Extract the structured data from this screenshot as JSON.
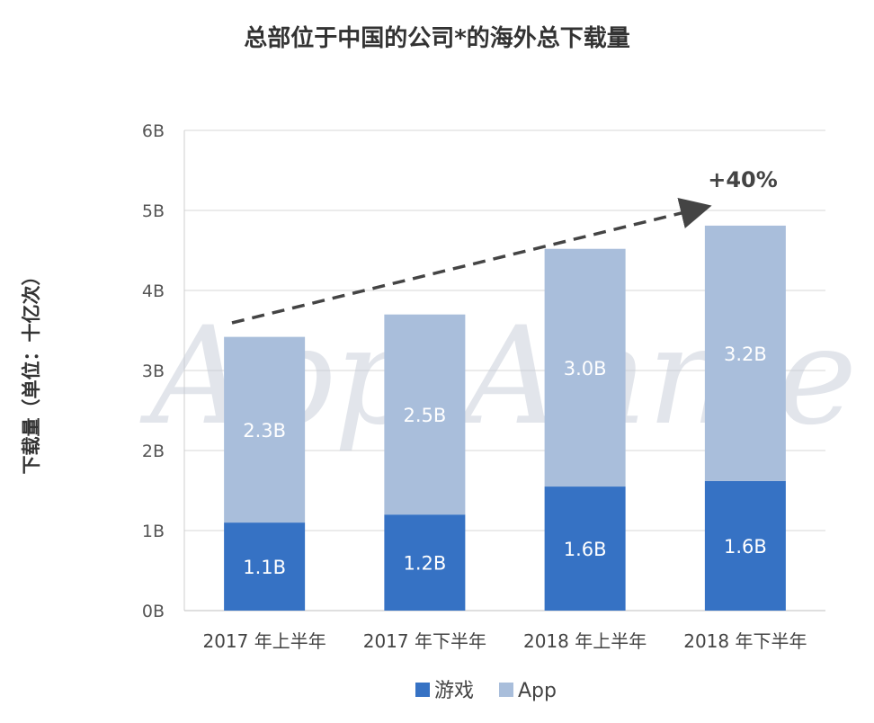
{
  "chart_data": {
    "type": "bar",
    "stacked": true,
    "title": "总部位于中国的公司*的海外总下载量",
    "ylabel": "下载量（单位：十亿次）",
    "xlabel": "",
    "categories": [
      "2017 年上半年",
      "2017 年下半年",
      "2018 年上半年",
      "2018 年下半年"
    ],
    "ylim": [
      0,
      6
    ],
    "yticks": [
      0,
      1,
      2,
      3,
      4,
      5,
      6
    ],
    "ytick_labels": [
      "0B",
      "1B",
      "2B",
      "3B",
      "4B",
      "5B",
      "6B"
    ],
    "grid": true,
    "series": [
      {
        "name": "游戏",
        "color": "#3672c4",
        "values": [
          1.1,
          1.2,
          1.55,
          1.62
        ],
        "labels": [
          "1.1B",
          "1.2B",
          "1.6B",
          "1.6B"
        ]
      },
      {
        "name": "App",
        "color": "#a9bedb",
        "values": [
          2.32,
          2.5,
          2.97,
          3.19
        ],
        "labels": [
          "2.3B",
          "2.5B",
          "3.0B",
          "3.2B"
        ]
      }
    ],
    "legend_position": "bottom",
    "annotation": {
      "text": "+40%",
      "style": "dashed-arrow"
    },
    "watermark": "App Annie"
  }
}
